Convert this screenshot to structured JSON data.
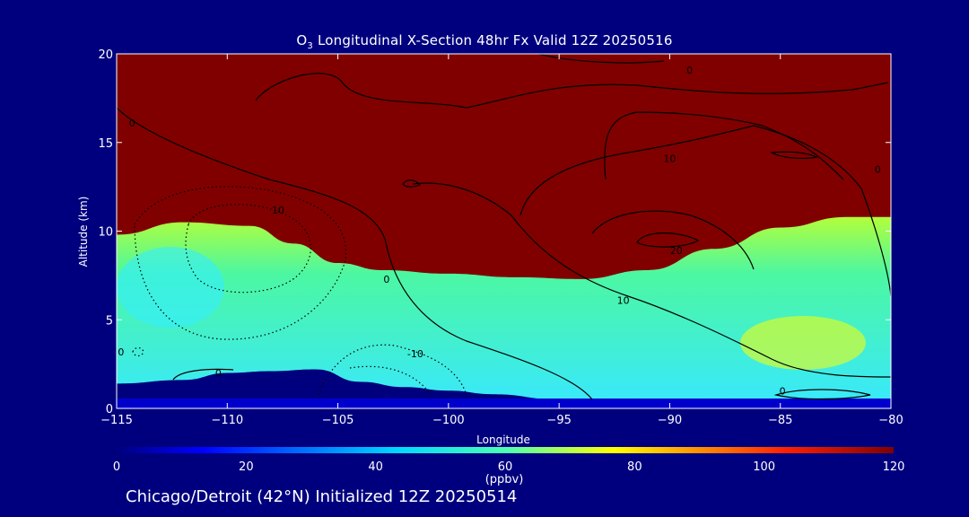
{
  "chart_data": {
    "type": "heatmap",
    "title": {
      "prefix": "O",
      "sub": "3",
      "rest": " Longitudinal X-Section 48hr  Fx Valid 12Z 20250516"
    },
    "xlabel": "Longitude",
    "ylabel": "Altitude (km)",
    "xlim": [
      -115,
      -80
    ],
    "ylim": [
      0,
      20
    ],
    "xticks": [
      -115,
      -110,
      -105,
      -100,
      -95,
      -90,
      -85,
      -80
    ],
    "xtick_labels": [
      "−115",
      "−110",
      "−105",
      "−100",
      "−95",
      "−90",
      "−85",
      "−80"
    ],
    "yticks": [
      0,
      5,
      10,
      15,
      20
    ],
    "ytick_labels": [
      "0",
      "5",
      "10",
      "15",
      "20"
    ],
    "colorbar": {
      "range": [
        0,
        120
      ],
      "ticks": [
        0,
        20,
        40,
        60,
        80,
        100,
        120
      ],
      "tick_labels": [
        "0",
        "20",
        "40",
        "60",
        "80",
        "100",
        "120"
      ],
      "unit": "(ppbv)"
    },
    "tropopause_height_km": {
      "x": [
        -115,
        -112,
        -109,
        -107,
        -105,
        -103,
        -100,
        -97,
        -94,
        -91,
        -88,
        -85,
        -82,
        -80
      ],
      "y": [
        9.8,
        10.5,
        10.3,
        9.3,
        8.2,
        7.8,
        7.6,
        7.4,
        7.3,
        7.8,
        9.0,
        10.2,
        10.8,
        10.8
      ]
    },
    "terrain_height_km": {
      "x": [
        -115,
        -112,
        -110,
        -108,
        -106,
        -104,
        -102,
        -100,
        -98,
        -95,
        -93,
        -90,
        -85,
        -80
      ],
      "y": [
        1.4,
        1.6,
        2.0,
        2.1,
        2.2,
        1.5,
        1.2,
        1.0,
        0.8,
        0.5,
        0.4,
        0.4,
        0.4,
        0.4
      ]
    },
    "contour_labels": [
      {
        "text": "0",
        "x": -89.1,
        "y": 19.1
      },
      {
        "text": "0",
        "x": -114.3,
        "y": 16.1
      },
      {
        "text": "10",
        "x": -90.0,
        "y": 14.1
      },
      {
        "text": "0",
        "x": -80.6,
        "y": 13.5
      },
      {
        "text": "10",
        "x": -107.7,
        "y": 11.2
      },
      {
        "text": "20",
        "x": -89.7,
        "y": 8.9
      },
      {
        "text": "0",
        "x": -102.8,
        "y": 7.3
      },
      {
        "text": "10",
        "x": -92.1,
        "y": 6.1
      },
      {
        "text": "-10",
        "x": -101.5,
        "y": 3.1
      },
      {
        "text": "0",
        "x": -110.4,
        "y": 2.0
      },
      {
        "text": "0",
        "x": -114.8,
        "y": 3.2
      },
      {
        "text": "0",
        "x": -84.9,
        "y": 1.0
      }
    ]
  },
  "caption": "Chicago/Detroit (42°N) Initialized 12Z 20250514"
}
